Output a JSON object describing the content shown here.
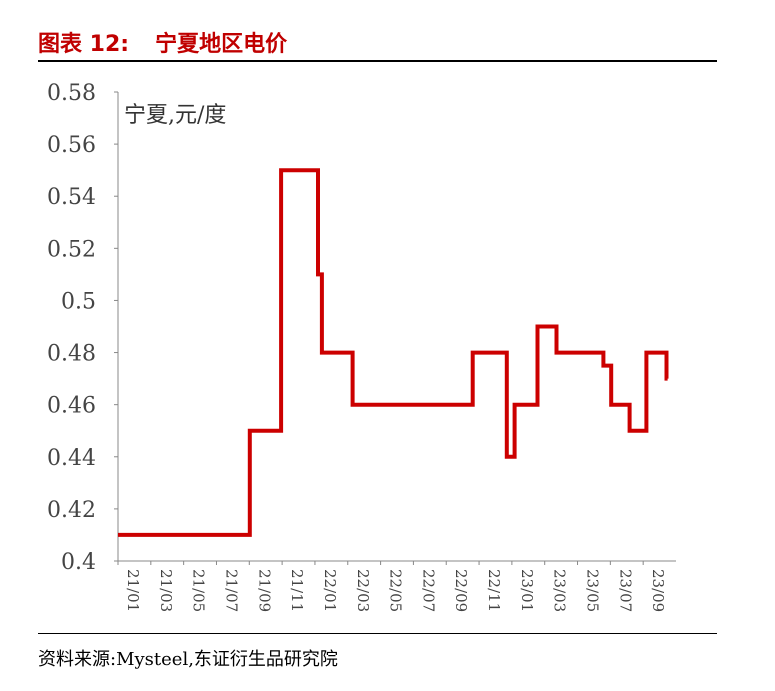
{
  "figure": {
    "label": "图表 12:",
    "title": "宁夏地区电价",
    "source": "资料来源:Mysteel,东证衍生品研究院"
  },
  "chart_data": {
    "type": "line",
    "ylabel": "宁夏,元/度",
    "ylim": [
      0.4,
      0.58
    ],
    "yticks": [
      0.4,
      0.42,
      0.44,
      0.46,
      0.48,
      0.5,
      0.52,
      0.54,
      0.56,
      0.58
    ],
    "yticklabels": [
      "0.4",
      "0.42",
      "0.44",
      "0.46",
      "0.48",
      "0.5",
      "0.52",
      "0.54",
      "0.56",
      "0.58"
    ],
    "xticklabels": [
      "21/01",
      "21/03",
      "21/05",
      "21/07",
      "21/09",
      "21/11",
      "22/01",
      "22/03",
      "22/05",
      "22/07",
      "22/09",
      "22/11",
      "23/01",
      "23/03",
      "23/05",
      "23/07",
      "23/09"
    ],
    "color": "#cc0000",
    "series": [
      {
        "points": [
          [
            "2021-01-01",
            0.41
          ],
          [
            "2021-08-25",
            0.41
          ],
          [
            "2021-08-25",
            0.45
          ],
          [
            "2021-10-20",
            0.45
          ],
          [
            "2021-10-20",
            0.55
          ],
          [
            "2021-12-25",
            0.55
          ],
          [
            "2021-12-25",
            0.51
          ],
          [
            "2022-01-01",
            0.51
          ],
          [
            "2022-01-01",
            0.48
          ],
          [
            "2022-02-25",
            0.48
          ],
          [
            "2022-02-25",
            0.46
          ],
          [
            "2022-09-28",
            0.46
          ],
          [
            "2022-09-28",
            0.48
          ],
          [
            "2022-11-28",
            0.48
          ],
          [
            "2022-11-28",
            0.44
          ],
          [
            "2022-12-12",
            0.44
          ],
          [
            "2022-12-12",
            0.46
          ],
          [
            "2023-01-22",
            0.46
          ],
          [
            "2023-01-22",
            0.49
          ],
          [
            "2023-02-25",
            0.49
          ],
          [
            "2023-02-25",
            0.48
          ],
          [
            "2023-05-20",
            0.48
          ],
          [
            "2023-05-20",
            0.475
          ],
          [
            "2023-06-03",
            0.475
          ],
          [
            "2023-06-03",
            0.46
          ],
          [
            "2023-07-06",
            0.46
          ],
          [
            "2023-07-06",
            0.45
          ],
          [
            "2023-08-05",
            0.45
          ],
          [
            "2023-08-05",
            0.48
          ],
          [
            "2023-09-10",
            0.48
          ],
          [
            "2023-09-10",
            0.47
          ],
          [
            "2023-09-12",
            0.47
          ]
        ]
      }
    ]
  }
}
